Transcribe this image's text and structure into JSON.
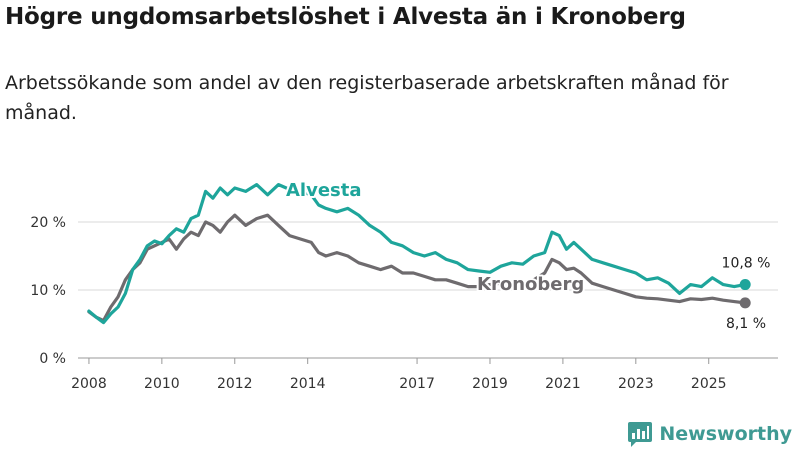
{
  "header": {
    "title": "Högre ungdomsarbetslöshet i Alvesta än i Kronoberg",
    "subtitle": "Arbetssökande som andel av den registerbaserade arbetskraften månad för månad."
  },
  "brand": {
    "name": "Newsworthy"
  },
  "chart_data": {
    "type": "line",
    "title": "Högre ungdomsarbetslöshet i Alvesta än i Kronoberg",
    "xlabel": "",
    "ylabel": "",
    "xlim": [
      2007.7,
      2026.9
    ],
    "ylim": [
      0,
      25
    ],
    "y_ticks": [
      0,
      10,
      20
    ],
    "y_tick_labels": [
      "0 %",
      "10 %",
      "20 %"
    ],
    "x_ticks": [
      2008,
      2010,
      2012,
      2014,
      2017,
      2019,
      2021,
      2023,
      2025
    ],
    "x_tick_labels": [
      "2008",
      "2010",
      "2012",
      "2014",
      "2017",
      "2019",
      "2021",
      "2023",
      "2025"
    ],
    "grid": true,
    "series": [
      {
        "name": "Alvesta",
        "color": "#1ea59b",
        "end_label": "10,8 %",
        "x": [
          2008.0,
          2008.2,
          2008.4,
          2008.6,
          2008.8,
          2009.0,
          2009.2,
          2009.4,
          2009.6,
          2009.8,
          2010.0,
          2010.2,
          2010.4,
          2010.6,
          2010.8,
          2011.0,
          2011.2,
          2011.4,
          2011.6,
          2011.8,
          2012.0,
          2012.3,
          2012.6,
          2012.9,
          2013.2,
          2013.5,
          2013.8,
          2014.1,
          2014.3,
          2014.5,
          2014.8,
          2015.1,
          2015.4,
          2015.7,
          2016.0,
          2016.3,
          2016.6,
          2016.9,
          2017.2,
          2017.5,
          2017.8,
          2018.1,
          2018.4,
          2018.7,
          2019.0,
          2019.3,
          2019.6,
          2019.9,
          2020.2,
          2020.5,
          2020.7,
          2020.9,
          2021.1,
          2021.3,
          2021.5,
          2021.8,
          2022.1,
          2022.4,
          2022.7,
          2023.0,
          2023.3,
          2023.6,
          2023.9,
          2024.2,
          2024.5,
          2024.8,
          2025.1,
          2025.4,
          2025.7,
          2026.0
        ],
        "values": [
          6.9,
          6.0,
          5.2,
          6.5,
          7.5,
          9.5,
          13.0,
          14.5,
          16.5,
          17.2,
          16.8,
          18.0,
          19.0,
          18.5,
          20.5,
          21.0,
          24.5,
          23.5,
          25.0,
          24.0,
          25.0,
          24.5,
          25.5,
          24.0,
          25.5,
          24.8,
          24.5,
          24.0,
          22.5,
          22.0,
          21.5,
          22.0,
          21.0,
          19.5,
          18.5,
          17.0,
          16.5,
          15.5,
          15.0,
          15.5,
          14.5,
          14.0,
          13.0,
          12.8,
          12.6,
          13.5,
          14.0,
          13.8,
          15.0,
          15.5,
          18.5,
          18.0,
          16.0,
          17.0,
          16.0,
          14.5,
          14.0,
          13.5,
          13.0,
          12.5,
          11.5,
          11.8,
          11.0,
          9.5,
          10.8,
          10.5,
          11.8,
          10.8,
          10.5,
          10.8
        ]
      },
      {
        "name": "Kronoberg",
        "color": "#6e6b6e",
        "end_label": "8,1 %",
        "x": [
          2008.0,
          2008.2,
          2008.4,
          2008.6,
          2008.8,
          2009.0,
          2009.2,
          2009.4,
          2009.6,
          2009.8,
          2010.0,
          2010.2,
          2010.4,
          2010.6,
          2010.8,
          2011.0,
          2011.2,
          2011.4,
          2011.6,
          2011.8,
          2012.0,
          2012.3,
          2012.6,
          2012.9,
          2013.2,
          2013.5,
          2013.8,
          2014.1,
          2014.3,
          2014.5,
          2014.8,
          2015.1,
          2015.4,
          2015.7,
          2016.0,
          2016.3,
          2016.6,
          2016.9,
          2017.2,
          2017.5,
          2017.8,
          2018.1,
          2018.4,
          2018.7,
          2019.0,
          2019.3,
          2019.6,
          2019.9,
          2020.2,
          2020.5,
          2020.7,
          2020.9,
          2021.1,
          2021.3,
          2021.5,
          2021.8,
          2022.1,
          2022.4,
          2022.7,
          2023.0,
          2023.3,
          2023.6,
          2023.9,
          2024.2,
          2024.5,
          2024.8,
          2025.1,
          2025.4,
          2025.7,
          2026.0
        ],
        "values": [
          6.8,
          6.0,
          5.5,
          7.5,
          9.0,
          11.5,
          13.0,
          14.0,
          16.0,
          16.5,
          17.0,
          17.5,
          16.0,
          17.5,
          18.5,
          18.0,
          20.0,
          19.5,
          18.5,
          20.0,
          21.0,
          19.5,
          20.5,
          21.0,
          19.5,
          18.0,
          17.5,
          17.0,
          15.5,
          15.0,
          15.5,
          15.0,
          14.0,
          13.5,
          13.0,
          13.5,
          12.5,
          12.5,
          12.0,
          11.5,
          11.5,
          11.0,
          10.5,
          10.5,
          10.8,
          11.0,
          11.2,
          11.0,
          11.5,
          12.5,
          14.5,
          14.0,
          13.0,
          13.2,
          12.5,
          11.0,
          10.5,
          10.0,
          9.5,
          9.0,
          8.8,
          8.7,
          8.5,
          8.3,
          8.7,
          8.6,
          8.8,
          8.5,
          8.3,
          8.1
        ]
      }
    ]
  }
}
